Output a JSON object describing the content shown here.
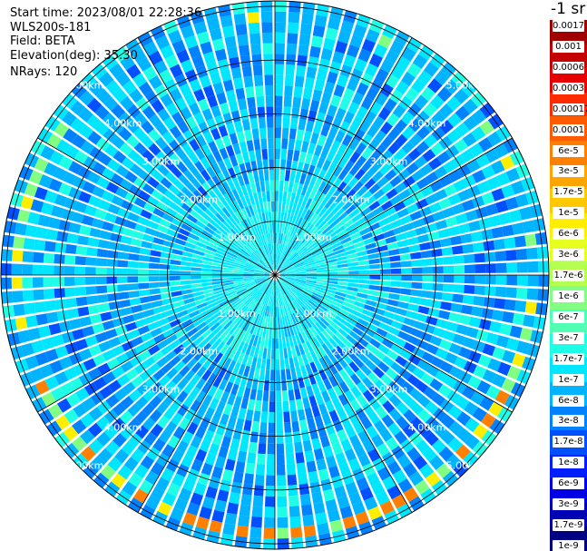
{
  "info": {
    "start_time": "Start time: 2023/08/01 22:28:36",
    "instrument": "WLS200s-181",
    "field": "Field: BETA",
    "elevation": "Elevation(deg): 35.30",
    "nrays": "NRays: 120"
  },
  "colorbar": {
    "unit": "-1 sr",
    "colors": [
      "#a00000",
      "#c40000",
      "#e60000",
      "#ff2a00",
      "#ff5a00",
      "#ff7f00",
      "#ffa500",
      "#ffc800",
      "#ffee00",
      "#e6ff1e",
      "#b4ff50",
      "#82ff82",
      "#50ffb4",
      "#1effe6",
      "#00e6ff",
      "#00b4ff",
      "#0082ff",
      "#0050ff",
      "#001eff",
      "#0000e6",
      "#0000b4",
      "#000082"
    ],
    "labels": [
      "0.0017",
      "0.001",
      "0.0006",
      "0.0003",
      "0.00017",
      "0.0001",
      "6e-5",
      "3e-5",
      "1.7e-5",
      "1e-5",
      "6e-6",
      "3e-6",
      "1.7e-6",
      "1e-6",
      "6e-7",
      "3e-7",
      "1.7e-7",
      "1e-7",
      "6e-8",
      "3e-8",
      "1.7e-8",
      "1e-8",
      "6e-9",
      "3e-9",
      "1.7e-9",
      "1e-9"
    ]
  },
  "chart_data": {
    "type": "heatmap",
    "projection": "polar (PPI scan)",
    "field": "BETA",
    "elevation_deg": 35.3,
    "n_rays": 120,
    "range_rings_km": [
      1.0,
      2.0,
      3.0,
      4.0,
      5.0
    ],
    "ring_labels": [
      "1.00km",
      "2.00km",
      "3.00km",
      "4.00km",
      "5.00km"
    ],
    "azimuth_grid_deg": [
      0,
      30,
      60,
      90,
      120,
      150,
      180,
      210,
      240,
      270,
      300,
      330
    ],
    "range_max_km": 5.1,
    "value_profile_vs_range": [
      {
        "range_km": 0.5,
        "beta": "1e-7"
      },
      {
        "range_km": 1.5,
        "beta": "3e-7"
      },
      {
        "range_km": 2.5,
        "beta": "1e-7"
      },
      {
        "range_km": 3.5,
        "beta": "6e-8"
      },
      {
        "range_km": 4.5,
        "beta": "6e-8"
      },
      {
        "range_km": 4.9,
        "beta": "1e-5"
      }
    ],
    "note_ring_enhancement": "high backscatter ring (~1e-5 to 1e-4) near 4.8-5.0 km, strongest on west side",
    "colorscale": "log, 1e-9 to 0.0017 sr-1"
  }
}
